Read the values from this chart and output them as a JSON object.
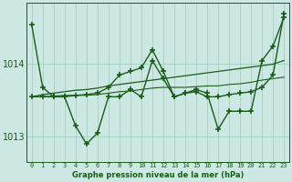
{
  "title": "Graphe pression niveau de la mer (hPa)",
  "bg_color": "#cce8e2",
  "grid_color": "#99ccbb",
  "line_color": "#1a5c1a",
  "xlim": [
    -0.5,
    23.5
  ],
  "ylim": [
    1012.65,
    1014.85
  ],
  "y_ticks": [
    1013,
    1014
  ],
  "x_ticks": [
    0,
    1,
    2,
    3,
    4,
    5,
    6,
    7,
    8,
    9,
    10,
    11,
    12,
    13,
    14,
    15,
    16,
    17,
    18,
    19,
    20,
    21,
    22,
    23
  ],
  "lines": [
    {
      "x": [
        0,
        1,
        2,
        3,
        4,
        5,
        6,
        7,
        8,
        9,
        10,
        11,
        12,
        13,
        14,
        15,
        16,
        17,
        18,
        19,
        20,
        21,
        22,
        23
      ],
      "y": [
        1013.55,
        1013.58,
        1013.6,
        1013.62,
        1013.64,
        1013.65,
        1013.67,
        1013.7,
        1013.72,
        1013.74,
        1013.76,
        1013.78,
        1013.8,
        1013.82,
        1013.84,
        1013.86,
        1013.88,
        1013.9,
        1013.92,
        1013.94,
        1013.96,
        1013.98,
        1014.0,
        1014.05
      ],
      "style": "-",
      "marker": null,
      "lw": 0.9
    },
    {
      "x": [
        0,
        1,
        2,
        3,
        4,
        5,
        6,
        7,
        8,
        9,
        10,
        11,
        12,
        13,
        14,
        15,
        16,
        17,
        18,
        19,
        20,
        21,
        22,
        23
      ],
      "y": [
        1013.55,
        1013.55,
        1013.56,
        1013.57,
        1013.57,
        1013.57,
        1013.58,
        1013.6,
        1013.62,
        1013.63,
        1013.65,
        1013.67,
        1013.68,
        1013.68,
        1013.68,
        1013.69,
        1013.7,
        1013.7,
        1013.72,
        1013.73,
        1013.75,
        1013.78,
        1013.8,
        1013.82
      ],
      "style": "-",
      "marker": null,
      "lw": 0.8
    },
    {
      "x": [
        0,
        1,
        2,
        3,
        4,
        5,
        6,
        7,
        8,
        9,
        10,
        11,
        12,
        13,
        14,
        15,
        16,
        17,
        18,
        19,
        20,
        21,
        22,
        23
      ],
      "y": [
        1014.55,
        1013.68,
        1013.55,
        1013.55,
        1013.15,
        1012.9,
        1013.05,
        1013.55,
        1013.55,
        1013.65,
        1013.55,
        1014.05,
        1013.8,
        1013.55,
        1013.6,
        1013.65,
        1013.6,
        1013.1,
        1013.35,
        1013.35,
        1013.35,
        1014.05,
        1014.25,
        1014.65
      ],
      "style": "-",
      "marker": "+",
      "ms": 4,
      "lw": 1.0
    },
    {
      "x": [
        0,
        1,
        2,
        3,
        4,
        5,
        6,
        7,
        8,
        9,
        10,
        11,
        12,
        13,
        14,
        15,
        16,
        17,
        18,
        19,
        20,
        21,
        22,
        23
      ],
      "y": [
        1013.55,
        1013.55,
        1013.55,
        1013.55,
        1013.57,
        1013.58,
        1013.6,
        1013.68,
        1013.85,
        1013.9,
        1013.95,
        1014.2,
        1013.9,
        1013.55,
        1013.6,
        1013.62,
        1013.55,
        1013.55,
        1013.58,
        1013.6,
        1013.62,
        1013.68,
        1013.85,
        1014.7
      ],
      "style": "-",
      "marker": "+",
      "ms": 4,
      "lw": 1.0
    }
  ]
}
